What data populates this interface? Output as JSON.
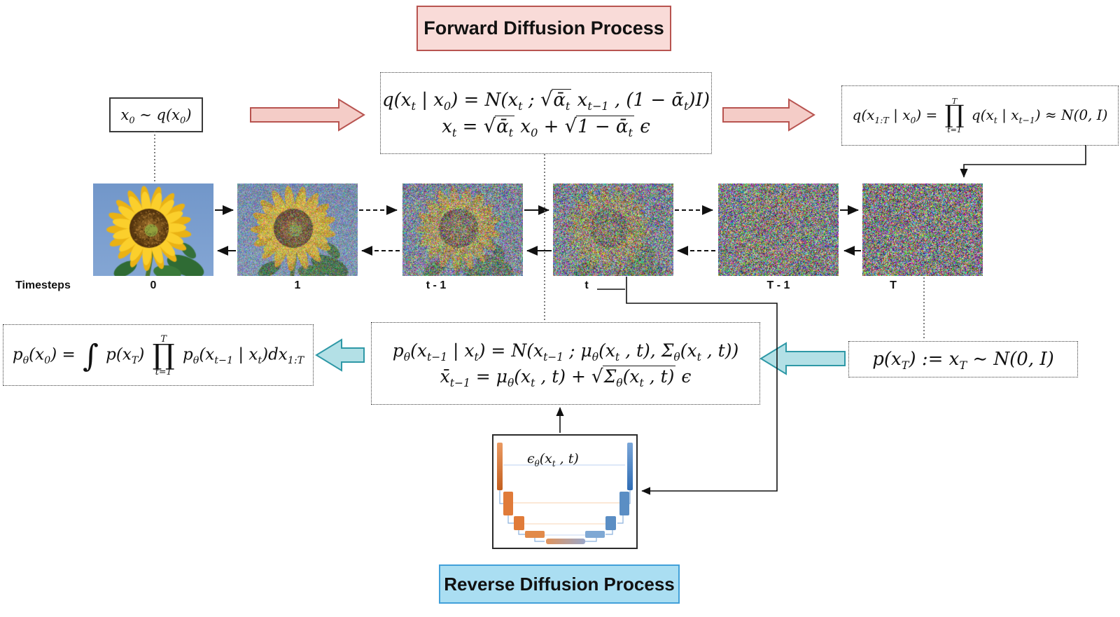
{
  "titles": {
    "forward": "Forward Diffusion Process",
    "reverse": "Reverse Diffusion Process"
  },
  "formulas": {
    "x0_sample": "x_{0} ∼ q(x_{0})",
    "q_step_line1": "q(x_{t} | x_{0}) = \\N(x_{t} ; \\sqrt{ᾱ_{t}} x_{t−1} , (1 − ᾱ_{t})I)",
    "q_step_line2": "x_{t} = \\sqrt{ᾱ_{t}} x_{0} + \\sqrt{1 − ᾱ_{t}} ϵ",
    "q_joint": "q(x_{1:T} | x_{0}) = \\prod{t=1}{T} q(x_{t} | x_{t−1}) ≈ \\N(0, I)",
    "p_joint": "p_{θ}(x_{0}) = \\int p(x_{T}) \\prod{t=1}{T} p_{θ}(x_{t−1} | x_{t})dx_{1:T}",
    "p_step_line1": "p_{θ}(x_{t−1} | x_{t}) = \\N(x_{t−1} ; μ_{θ}(x_{t} , t), Σ_{θ}(x_{t} , t))",
    "p_step_line2": "x̄_{t−1} = μ_{θ}(x_{t} , t) + \\sqrt{Σ_{θ}(x_{t} , t)} ϵ",
    "prior": "p(x_{T}) := x_{T} ∼ \\N(0, I)",
    "unet_output": "ϵ_{θ}(x_{t} , t)"
  },
  "timesteps": {
    "axis_label": "Timesteps"
  },
  "images": [
    {
      "label": "0",
      "noise": 0.0
    },
    {
      "label": "1",
      "noise": 0.42
    },
    {
      "label": "t - 1",
      "noise": 0.7
    },
    {
      "label": "t",
      "noise": 0.82
    },
    {
      "label": "T - 1",
      "noise": 0.94
    },
    {
      "label": "T",
      "noise": 1.0
    }
  ],
  "colors": {
    "forward_title_fill": "#f9dbd8",
    "forward_accent_fill": "#f4ccc7",
    "forward_accent_stroke": "#b85450",
    "reverse_title_fill": "#aadef2",
    "reverse_title_stroke": "#41a0d9",
    "reverse_accent_fill": "#b3e0e6",
    "reverse_accent_stroke": "#2e98a6",
    "unet_encoder": "#e07b39",
    "unet_decoder": "#5b8ec4"
  }
}
